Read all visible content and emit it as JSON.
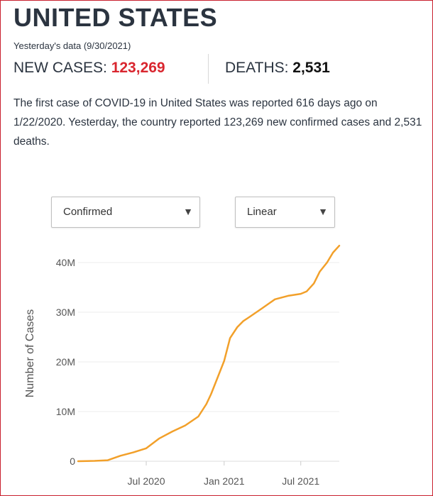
{
  "header": {
    "title": "UNITED STATES",
    "subtitle": "Yesterday's data (9/30/2021)"
  },
  "stats": {
    "cases_label": "NEW CASES: ",
    "cases_value": "123,269",
    "deaths_label": "DEATHS: ",
    "deaths_value": "2,531"
  },
  "description": "The first case of COVID-19 in United States was reported 616 days ago on 1/22/2020. Yesterday, the country reported 123,269 new confirmed cases and 2,531 deaths.",
  "controls": {
    "metric_selected": "Confirmed",
    "scale_selected": "Linear",
    "arrow": "▼"
  },
  "colors": {
    "accent": "#d9262f",
    "line": "#f2a02a",
    "border": "#c9202e"
  },
  "chart_data": {
    "type": "line",
    "title": "",
    "xlabel": "",
    "ylabel": "Number of Cases",
    "x_ticks": [
      "Jul 2020",
      "Jan 2021",
      "Jul 2021"
    ],
    "y_ticks": [
      "0",
      "10M",
      "20M",
      "30M",
      "40M"
    ],
    "ylim": [
      0,
      45000000
    ],
    "xlim": [
      "2020-01-22",
      "2021-09-30"
    ],
    "grid": "horizontal",
    "series": [
      {
        "x": [
          "2020-01-22",
          "2020-03-01",
          "2020-04-01",
          "2020-05-01",
          "2020-06-01",
          "2020-07-01",
          "2020-08-01",
          "2020-09-01",
          "2020-10-01",
          "2020-11-01",
          "2020-11-20",
          "2020-12-01",
          "2020-12-15",
          "2021-01-01",
          "2021-01-15",
          "2021-02-01",
          "2021-02-15",
          "2021-03-01",
          "2021-04-01",
          "2021-05-01",
          "2021-06-01",
          "2021-07-01",
          "2021-07-15",
          "2021-08-01",
          "2021-08-15",
          "2021-09-01",
          "2021-09-15",
          "2021-09-30"
        ],
        "values": [
          0,
          75000,
          200000,
          1100000,
          1800000,
          2600000,
          4600000,
          6000000,
          7200000,
          9000000,
          11500000,
          13500000,
          16500000,
          20200000,
          24800000,
          27000000,
          28200000,
          29000000,
          30800000,
          32600000,
          33300000,
          33700000,
          34200000,
          35800000,
          38200000,
          40000000,
          42000000,
          43400000
        ]
      }
    ]
  }
}
